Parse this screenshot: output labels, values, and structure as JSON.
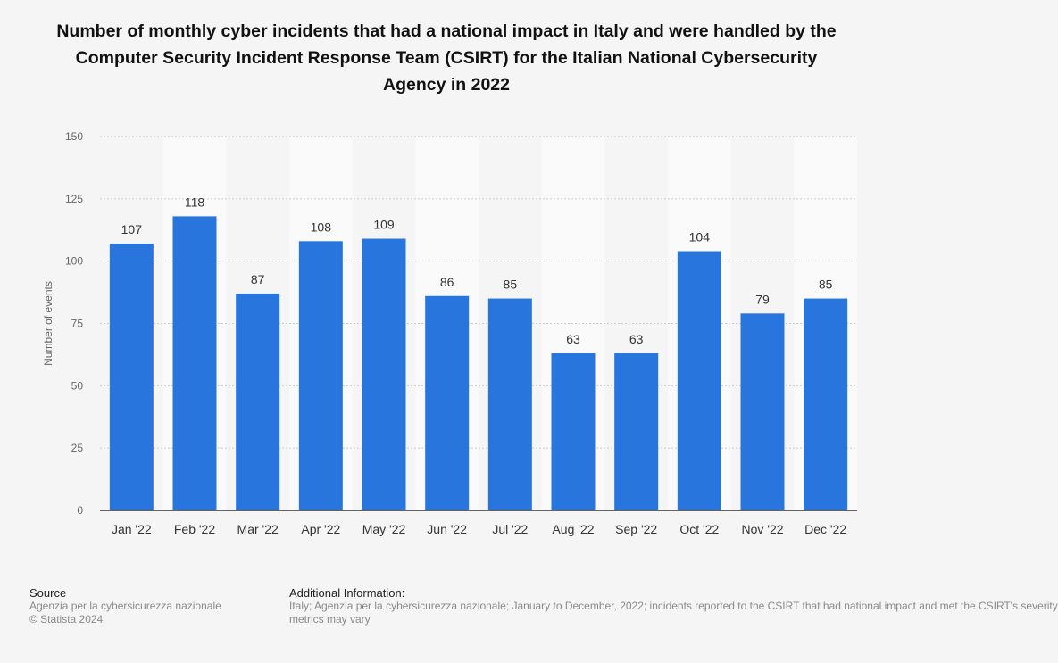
{
  "chart_data": {
    "type": "bar",
    "title": "Number of monthly cyber incidents that had a national impact in Italy and were handled by the Computer Security Incident Response Team (CSIRT) for the Italian National Cybersecurity Agency in 2022",
    "xlabel": "",
    "ylabel": "Number of events",
    "categories": [
      "Jan '22",
      "Feb '22",
      "Mar '22",
      "Apr '22",
      "May '22",
      "Jun '22",
      "Jul '22",
      "Aug '22",
      "Sep '22",
      "Oct '22",
      "Nov '22",
      "Dec '22"
    ],
    "values": [
      107,
      118,
      87,
      108,
      109,
      86,
      85,
      63,
      63,
      104,
      79,
      85
    ],
    "ylim": [
      0,
      150
    ],
    "yticks": [
      0,
      25,
      50,
      75,
      100,
      125,
      150
    ],
    "grid": true,
    "bar_color": "#2876dd"
  },
  "footer": {
    "source_heading": "Source",
    "source_lines": [
      "Agenzia per la cybersicurezza nazionale",
      "© Statista 2024"
    ],
    "info_heading": "Additional Information:",
    "info_lines": [
      "Italy; Agenzia per la cybersicurezza nazionale; January to December, 2022; incidents reported to the CSIRT that had national impact and met the CSIRT's severity",
      "metrics may vary"
    ]
  },
  "colors": {
    "background": "#f5f5f5",
    "band": "#fafafa",
    "grid": "#cccccc",
    "axis": "#333333",
    "bar": "#2876dd"
  }
}
